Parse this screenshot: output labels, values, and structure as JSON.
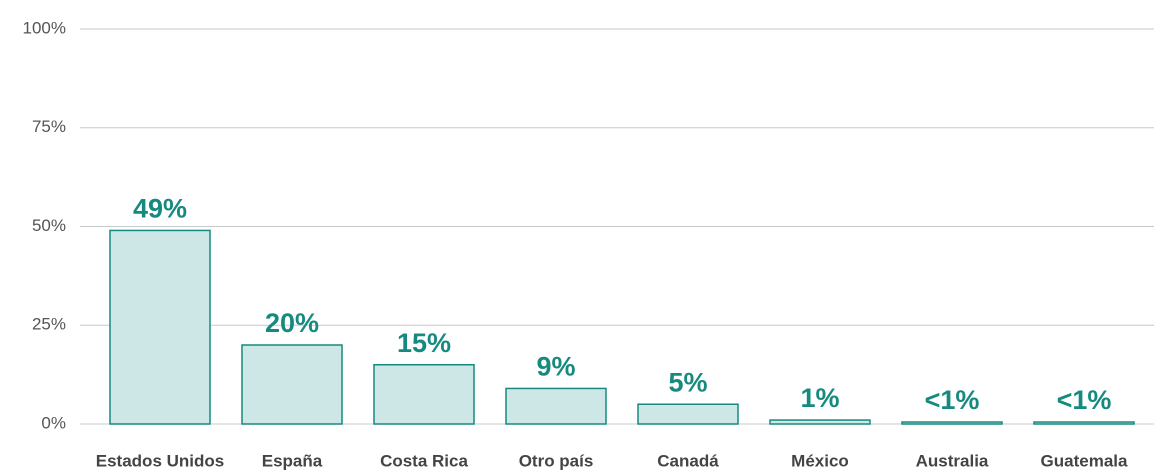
{
  "chart_data": {
    "type": "bar",
    "categories": [
      "Estados Unidos",
      "España",
      "Costa Rica",
      "Otro país",
      "Canadá",
      "México",
      "Australia",
      "Guatemala"
    ],
    "values": [
      49,
      20,
      15,
      9,
      5,
      1,
      0.5,
      0.5
    ],
    "value_labels": [
      "49%",
      "20%",
      "15%",
      "9%",
      "5%",
      "1%",
      "<1%",
      "<1%"
    ],
    "color": "#cde7e6",
    "edge_color": "#178a80",
    "ylim": [
      0,
      100
    ],
    "yticks": [
      {
        "value": 0,
        "label": "0%"
      },
      {
        "value": 25,
        "label": "25%"
      },
      {
        "value": 50,
        "label": "50%"
      },
      {
        "value": 75,
        "label": "75%"
      },
      {
        "value": 100,
        "label": "100%"
      }
    ],
    "grid": true
  }
}
